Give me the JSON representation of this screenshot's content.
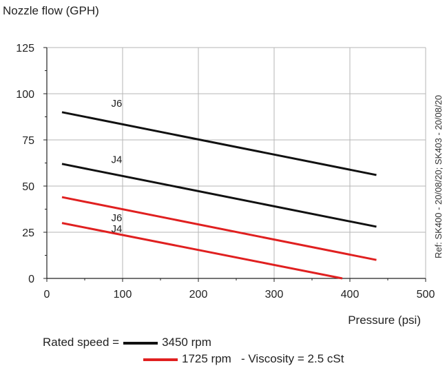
{
  "chart_data": {
    "type": "line",
    "ylabel": "Nozzle flow (GPH)",
    "xlabel": "Pressure (psi)",
    "xlim": [
      0,
      500
    ],
    "ylim": [
      0,
      125
    ],
    "xticks": [
      0,
      100,
      200,
      300,
      400,
      500
    ],
    "yticks": [
      0,
      25,
      50,
      75,
      100,
      125
    ],
    "grid": true,
    "series": [
      {
        "name": "J6",
        "speed": "3450 rpm",
        "color": "#111111",
        "x": [
          20,
          435
        ],
        "y": [
          90,
          56
        ],
        "label_at": [
          85,
          93
        ]
      },
      {
        "name": "J4",
        "speed": "3450 rpm",
        "color": "#111111",
        "x": [
          20,
          435
        ],
        "y": [
          62,
          28
        ],
        "label_at": [
          85,
          62.5
        ]
      },
      {
        "name": "J6",
        "speed": "1725 rpm",
        "color": "#e02020",
        "x": [
          20,
          435
        ],
        "y": [
          44,
          10
        ],
        "label_at": [
          85,
          31
        ]
      },
      {
        "name": "J4",
        "speed": "1725 rpm",
        "color": "#e02020",
        "x": [
          20,
          390
        ],
        "y": [
          30,
          0
        ],
        "label_at": [
          85,
          25
        ]
      }
    ]
  },
  "legend": {
    "rated_speed_label": "Rated speed =",
    "high_speed": "3450 rpm",
    "low_speed": "1725 rpm",
    "viscosity_note": "-  Viscosity = 2.5 cSt",
    "high_color": "#111111",
    "low_color": "#e02020"
  },
  "side_reference": "Ref: SK400 - 20/08/20; SK403 - 20/08/20"
}
